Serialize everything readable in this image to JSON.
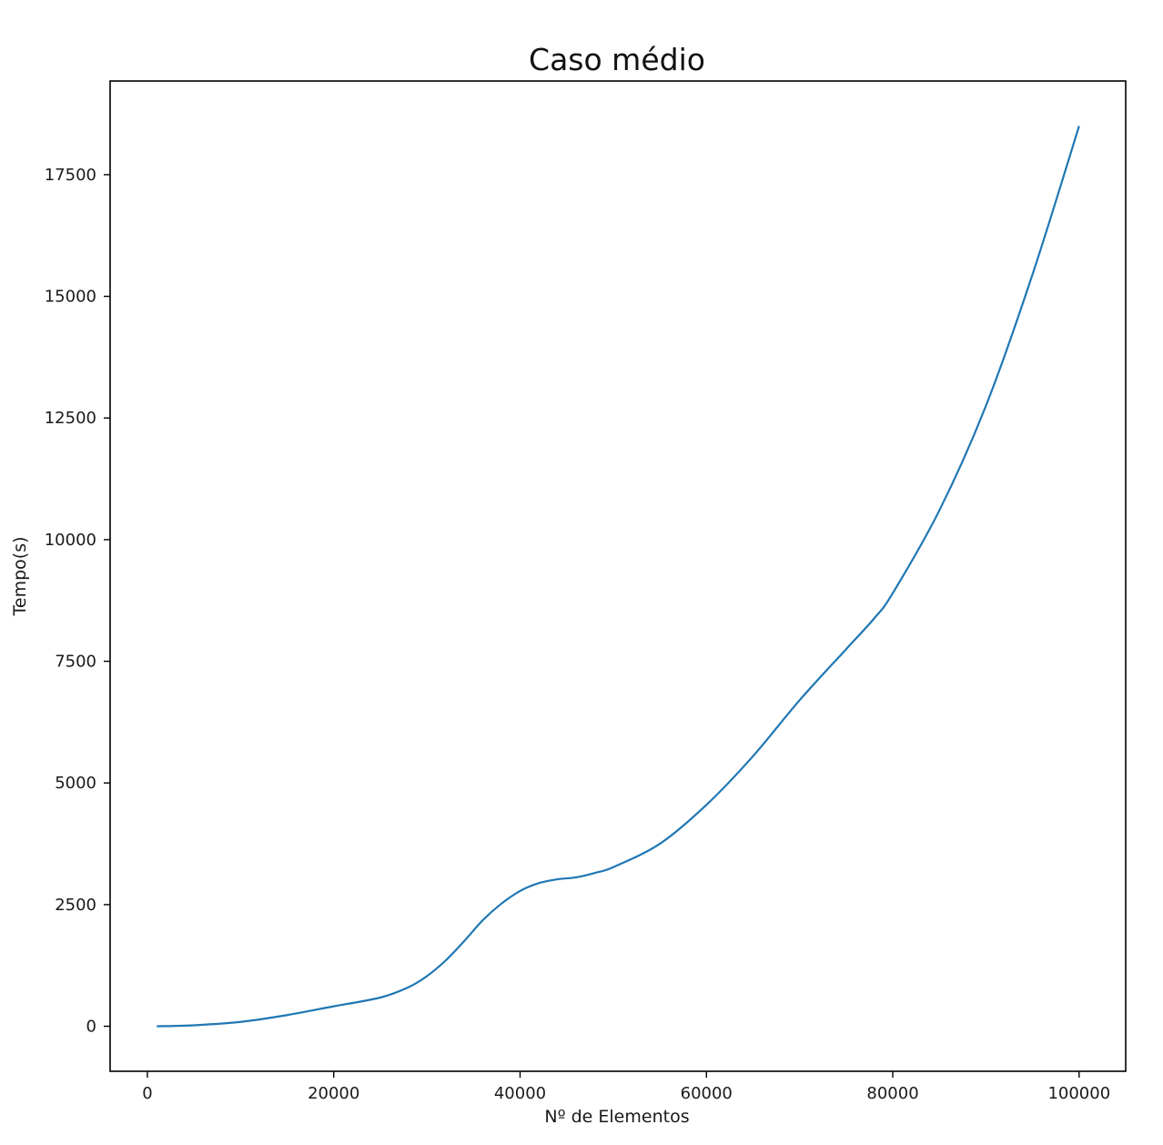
{
  "chart_data": {
    "type": "line",
    "title": "Caso médio",
    "xlabel": "Nº de Elementos",
    "ylabel": "Tempo(s)",
    "xlim": [
      -4000,
      105000
    ],
    "ylim": [
      -925,
      19425
    ],
    "xticks": [
      0,
      20000,
      40000,
      60000,
      80000,
      100000
    ],
    "xtick_labels": [
      "0",
      "20000",
      "40000",
      "60000",
      "80000",
      "100000"
    ],
    "yticks": [
      0,
      2500,
      5000,
      7500,
      10000,
      12500,
      15000,
      17500
    ],
    "ytick_labels": [
      "0",
      "2500",
      "5000",
      "7500",
      "10000",
      "12500",
      "15000",
      "17500"
    ],
    "grid": false,
    "legend": false,
    "line_color": "#1f77b4",
    "series": [
      {
        "x": [
          1000,
          5000,
          10000,
          15000,
          20000,
          25000,
          28000,
          30000,
          32000,
          34000,
          36000,
          38000,
          40000,
          42000,
          44000,
          46000,
          48000,
          50000,
          55000,
          60000,
          65000,
          70000,
          75000,
          78000,
          80000,
          85000,
          90000,
          95000,
          100000
        ],
        "y": [
          0,
          20,
          90,
          230,
          410,
          590,
          800,
          1030,
          1350,
          1750,
          2180,
          2520,
          2780,
          2940,
          3020,
          3060,
          3150,
          3270,
          3750,
          4550,
          5550,
          6700,
          7750,
          8380,
          8900,
          10600,
          12750,
          15450,
          18500
        ]
      }
    ]
  }
}
